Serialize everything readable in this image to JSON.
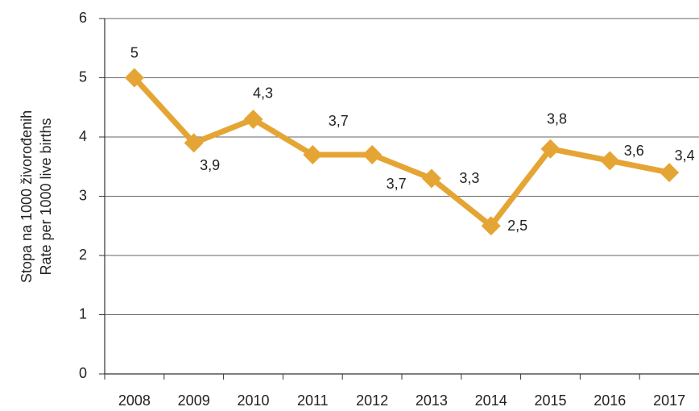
{
  "chart_data": {
    "type": "line",
    "ylabel": [
      "Stopa na 1000 živorođenih",
      "Rate per 1000 live births"
    ],
    "categories": [
      "2008",
      "2009",
      "2010",
      "2011",
      "2012",
      "2013",
      "2014",
      "2015",
      "2016",
      "2017"
    ],
    "series": [
      {
        "color": "#e5a535",
        "values": [
          5,
          3.9,
          4.3,
          3.7,
          3.7,
          3.3,
          2.5,
          3.8,
          3.6,
          3.4
        ],
        "value_labels": [
          "5",
          "3,9",
          "4,3",
          "3,7",
          "3,7",
          "3,3",
          "2,5",
          "3,8",
          "3,6",
          "3,4"
        ]
      }
    ],
    "ylim": [
      0,
      6
    ],
    "yticks": [
      0,
      1,
      2,
      3,
      4,
      5,
      6
    ],
    "grid": true
  }
}
